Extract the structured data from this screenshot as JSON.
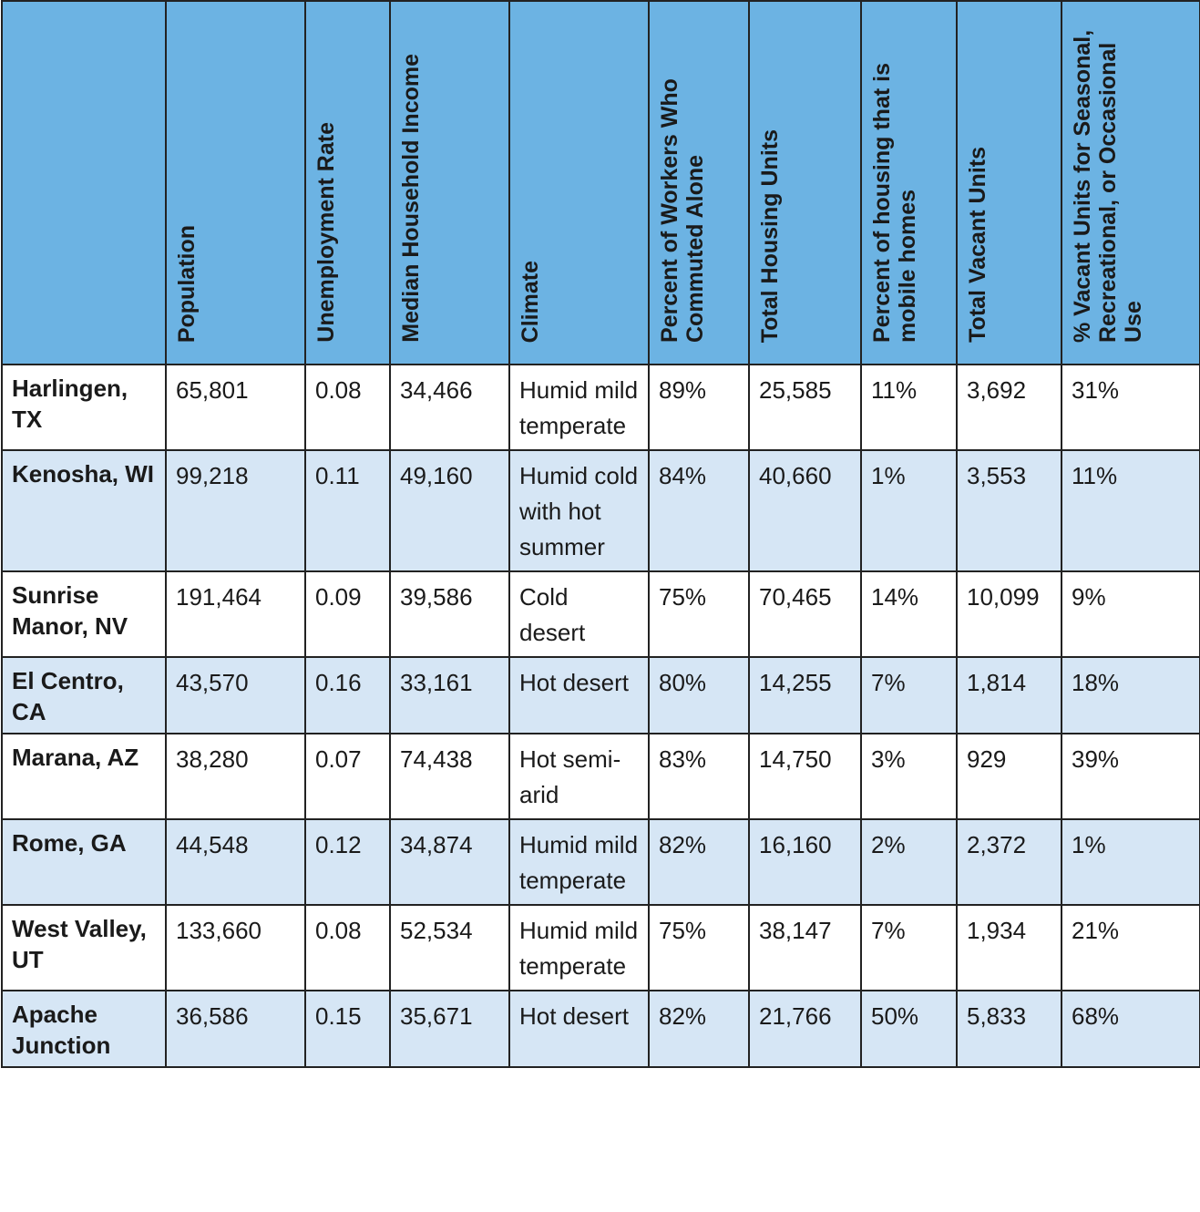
{
  "table": {
    "headers": [
      "Population",
      "Unemployment Rate",
      "Median Household Income",
      "Climate",
      "Percent of Workers Who Commuted Alone",
      "Total Housing Units",
      "Percent of housing that is mobile homes",
      "Total Vacant Units",
      "% Vacant Units for Seasonal, Recreational, or Occasional Use"
    ],
    "rows": [
      [
        "Harlingen, TX",
        "65,801",
        "0.08",
        "34,466",
        "Humid mild temperate",
        "89%",
        "25,585",
        "11%",
        "3,692",
        "31%"
      ],
      [
        "Kenosha, WI",
        "99,218",
        "0.11",
        "49,160",
        "Humid cold with hot summer",
        "84%",
        "40,660",
        "1%",
        "3,553",
        "11%"
      ],
      [
        "Sunrise Manor, NV",
        "191,464",
        "0.09",
        "39,586",
        "Cold desert",
        "75%",
        "70,465",
        "14%",
        "10,099",
        "9%"
      ],
      [
        "El Centro, CA",
        "43,570",
        "0.16",
        "33,161",
        "Hot desert",
        "80%",
        "14,255",
        "7%",
        "1,814",
        "18%"
      ],
      [
        "Marana, AZ",
        "38,280",
        "0.07",
        "74,438",
        "Hot semi-arid",
        "83%",
        "14,750",
        "3%",
        "929",
        "39%"
      ],
      [
        "Rome, GA",
        "44,548",
        "0.12",
        "34,874",
        "Humid mild temperate",
        "82%",
        "16,160",
        "2%",
        "2,372",
        "1%"
      ],
      [
        "West Valley, UT",
        "133,660",
        "0.08",
        "52,534",
        "Humid mild temperate",
        "75%",
        "38,147",
        "7%",
        "1,934",
        "21%"
      ],
      [
        "Apache Junction",
        "36,586",
        "0.15",
        "35,671",
        "Hot desert",
        "82%",
        "21,766",
        "50%",
        "5,833",
        "68%"
      ]
    ]
  }
}
